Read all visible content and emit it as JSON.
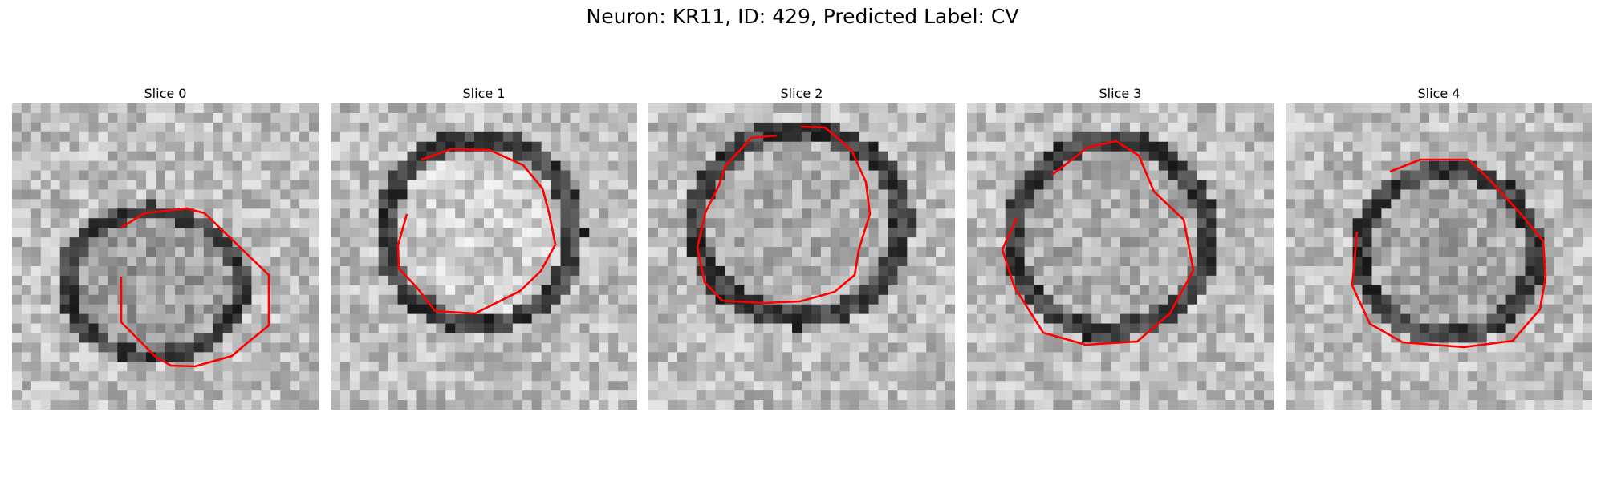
{
  "figure": {
    "title": "Neuron: KR11, ID: 429, Predicted Label: CV"
  },
  "contour_color": "#ff0000",
  "slices": [
    {
      "title": "Slice 0"
    },
    {
      "title": "Slice 1"
    },
    {
      "title": "Slice 2"
    },
    {
      "title": "Slice 3"
    },
    {
      "title": "Slice 4"
    }
  ]
}
